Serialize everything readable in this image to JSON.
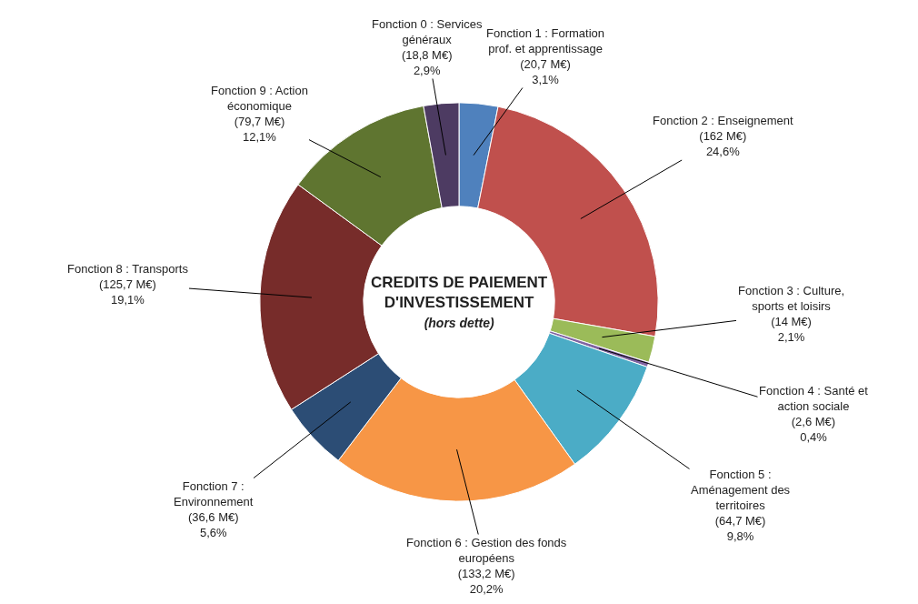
{
  "chart_data": {
    "type": "donut",
    "title": "CREDITS DE PAIEMENT\nD'INVESTISSEMENT",
    "subtitle": "(hors dette)",
    "categories": [
      "Fonction 1 : Formation\nprof. et apprentissage",
      "Fonction 2 : Enseignement",
      "Fonction 3 : Culture,\nsports et loisirs",
      "Fonction 4 : Santé et\naction sociale",
      "Fonction 5 :\nAménagement des\nterritoires",
      "Fonction 6 : Gestion des fonds\neuropéens",
      "Fonction 7 :\nEnvironnement",
      "Fonction 8 : Transports",
      "Fonction 9 : Action\néconomique",
      "Fonction 0 : Services\ngénéraux"
    ],
    "values": [
      20.7,
      162,
      14,
      2.6,
      64.7,
      133.2,
      36.6,
      125.7,
      79.7,
      18.8
    ],
    "value_labels": [
      "(20,7 M€)\n3,1%",
      "(162 M€)\n24,6%",
      "(14 M€)\n2,1%",
      "(2,6 M€)\n0,4%",
      "(64,7 M€)\n9,8%",
      "(133,2 M€)\n20,2%",
      "(36,6 M€)\n5,6%",
      "(125,7 M€)\n19,1%",
      "(79,7 M€)\n12,1%",
      "(18,8 M€)\n2,9%"
    ],
    "colors": [
      "#4f81bd",
      "#c0504d",
      "#9bbb59",
      "#8064a2",
      "#4bacc6",
      "#f79646",
      "#2c4d75",
      "#772c2a",
      "#5f7530",
      "#4d3b62"
    ]
  }
}
